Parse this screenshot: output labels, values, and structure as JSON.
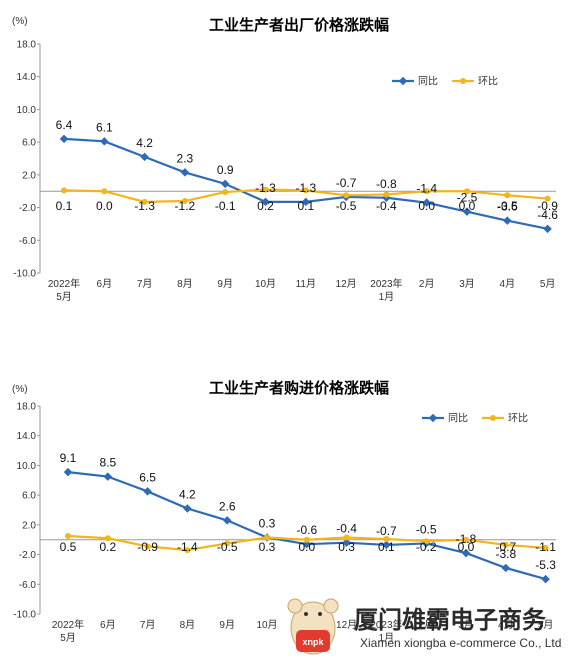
{
  "chart_data": [
    {
      "type": "line",
      "title": "工业生产者出厂价格涨跌幅",
      "unit": "(%)",
      "yticks": [
        "18.0",
        "14.0",
        "10.0",
        "6.0",
        "2.0",
        "-2.0",
        "-6.0",
        "-10.0"
      ],
      "ylim": [
        -10,
        18
      ],
      "categories": [
        [
          "2022年",
          "5月"
        ],
        [
          "6月"
        ],
        [
          "7月"
        ],
        [
          "8月"
        ],
        [
          "9月"
        ],
        [
          "10月"
        ],
        [
          "11月"
        ],
        [
          "12月"
        ],
        [
          "2023年",
          "1月"
        ],
        [
          "2月"
        ],
        [
          "3月"
        ],
        [
          "4月"
        ],
        [
          "5月"
        ]
      ],
      "legend_position": "top-right",
      "series": [
        {
          "name": "同比",
          "color": "#2f6bb5",
          "values": [
            6.4,
            6.1,
            4.2,
            2.3,
            0.9,
            -1.3,
            -1.3,
            -0.7,
            -0.8,
            -1.4,
            -2.5,
            -3.6,
            -4.6
          ],
          "labels": [
            "6.4",
            "6.1",
            "4.2",
            "2.3",
            "0.9",
            "-1.3",
            "-1.3",
            "-0.7",
            "-0.8",
            "-1.4",
            "-2.5",
            "-3.6",
            "-4.6"
          ]
        },
        {
          "name": "环比",
          "color": "#f2b61c",
          "values": [
            0.1,
            0.0,
            -1.3,
            -1.2,
            -0.1,
            0.2,
            0.1,
            -0.5,
            -0.4,
            0.0,
            0.0,
            -0.5,
            -0.9
          ],
          "labels": [
            "0.1",
            "0.0",
            "-1.3",
            "-1.2",
            "-0.1",
            "0.2",
            "0.1",
            "-0.5",
            "-0.4",
            "0.0",
            "0.0",
            "-0.5",
            "-0.9"
          ]
        }
      ]
    },
    {
      "type": "line",
      "title": "工业生产者购进价格涨跌幅",
      "unit": "(%)",
      "yticks": [
        "18.0",
        "14.0",
        "10.0",
        "6.0",
        "2.0",
        "-2.0",
        "-6.0",
        "-10.0"
      ],
      "ylim": [
        -10,
        18
      ],
      "categories": [
        [
          "2022年",
          "5月"
        ],
        [
          "6月"
        ],
        [
          "7月"
        ],
        [
          "8月"
        ],
        [
          "9月"
        ],
        [
          "10月"
        ],
        [
          "11月"
        ],
        [
          "12月"
        ],
        [
          "2023年",
          "1月"
        ],
        [
          "2月"
        ],
        [
          "3月"
        ],
        [
          "4月"
        ],
        [
          "5月"
        ]
      ],
      "legend_position": "top-right",
      "series": [
        {
          "name": "同比",
          "color": "#2f6bb5",
          "values": [
            9.1,
            8.5,
            6.5,
            4.2,
            2.6,
            0.3,
            -0.6,
            -0.4,
            -0.7,
            -0.5,
            -1.8,
            -3.8,
            -5.3
          ],
          "labels": [
            "9.1",
            "8.5",
            "6.5",
            "4.2",
            "2.6",
            "0.3",
            "-0.6",
            "-0.4",
            "-0.7",
            "-0.5",
            "-1.8",
            "-3.8",
            "-5.3"
          ]
        },
        {
          "name": "环比",
          "color": "#f2b61c",
          "values": [
            0.5,
            0.2,
            -0.9,
            -1.4,
            -0.5,
            0.3,
            0.0,
            0.3,
            0.1,
            -0.2,
            0.0,
            -0.7,
            -1.1
          ],
          "labels": [
            "0.5",
            "0.2",
            "-0.9",
            "-1.4",
            "-0.5",
            "0.3",
            "0.0",
            "0.3",
            "0.1",
            "-0.2",
            "0.0",
            "-0.7",
            "-1.1"
          ]
        }
      ]
    }
  ],
  "watermark": {
    "company_cn": "厦门雄霸电子商务",
    "company_en": "Xiamen xiongba e-commerce Co., Ltd",
    "mascot_text": "xnpk"
  }
}
